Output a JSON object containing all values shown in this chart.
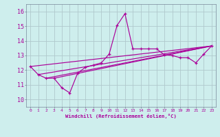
{
  "xlabel": "Windchill (Refroidissement éolien,°C)",
  "bg_color": "#ceeeed",
  "line_color": "#aa0099",
  "grid_color": "#b0c8cc",
  "xlim": [
    -0.5,
    23.5
  ],
  "ylim": [
    9.5,
    16.5
  ],
  "yticks": [
    10,
    11,
    12,
    13,
    14,
    15,
    16
  ],
  "xticks": [
    0,
    1,
    2,
    3,
    4,
    5,
    6,
    7,
    8,
    9,
    10,
    11,
    12,
    13,
    14,
    15,
    16,
    17,
    18,
    19,
    20,
    21,
    22,
    23
  ],
  "series": [
    [
      0,
      12.25
    ],
    [
      1,
      11.7
    ],
    [
      2,
      11.45
    ],
    [
      3,
      11.45
    ],
    [
      4,
      10.8
    ],
    [
      5,
      10.45
    ],
    [
      6,
      11.8
    ],
    [
      7,
      12.2
    ],
    [
      8,
      12.35
    ],
    [
      9,
      12.5
    ],
    [
      10,
      13.1
    ],
    [
      11,
      15.05
    ],
    [
      12,
      15.85
    ],
    [
      13,
      13.45
    ],
    [
      14,
      13.45
    ],
    [
      15,
      13.45
    ],
    [
      16,
      13.45
    ],
    [
      17,
      13.05
    ],
    [
      18,
      13.0
    ],
    [
      19,
      12.85
    ],
    [
      20,
      12.85
    ],
    [
      21,
      12.5
    ],
    [
      22,
      13.1
    ],
    [
      23,
      13.65
    ]
  ],
  "straight_lines": [
    [
      [
        0,
        12.25
      ],
      [
        23,
        13.65
      ]
    ],
    [
      [
        1,
        11.7
      ],
      [
        23,
        13.65
      ]
    ],
    [
      [
        2,
        11.45
      ],
      [
        23,
        13.65
      ]
    ],
    [
      [
        3,
        11.45
      ],
      [
        23,
        13.65
      ]
    ]
  ]
}
